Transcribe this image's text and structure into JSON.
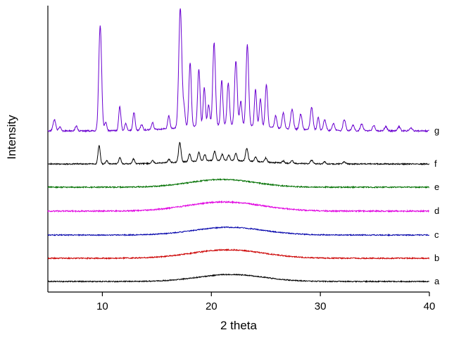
{
  "figure": {
    "background": "#ffffff",
    "axis_color": "#000000"
  },
  "chart_data": {
    "type": "line",
    "title": "",
    "xlabel": "2 theta",
    "ylabel": "Intensity",
    "xlim": [
      5,
      40
    ],
    "x_ticks": [
      10,
      20,
      30,
      40
    ],
    "grid": false,
    "legend_position": "right-of-each-trace",
    "description": "Stacked XRD diffractograms: traces a-e are amorphous broad halos centered near 2theta=21-22; trace f shows weak crystalline peaks; trace g shows strong crystalline peaks.",
    "series": [
      {
        "name": "a",
        "color": "#000000",
        "offset": 15,
        "noise": 0.7,
        "hump": {
          "c": 21.8,
          "h": 10,
          "s": 3.0
        },
        "peaks": []
      },
      {
        "name": "b",
        "color": "#cc0000",
        "offset": 48,
        "noise": 0.8,
        "hump": {
          "c": 21.5,
          "h": 12,
          "s": 3.3
        },
        "peaks": []
      },
      {
        "name": "c",
        "color": "#0000aa",
        "offset": 81,
        "noise": 0.7,
        "hump": {
          "c": 21.6,
          "h": 11,
          "s": 3.2
        },
        "peaks": []
      },
      {
        "name": "d",
        "color": "#e000e0",
        "offset": 115,
        "noise": 0.9,
        "hump": {
          "c": 21.2,
          "h": 13,
          "s": 3.4
        },
        "peaks": []
      },
      {
        "name": "e",
        "color": "#007000",
        "offset": 149,
        "noise": 0.8,
        "hump": {
          "c": 21.0,
          "h": 11,
          "s": 3.0
        },
        "peaks": []
      },
      {
        "name": "f",
        "color": "#000000",
        "offset": 182,
        "noise": 0.8,
        "hump": {
          "c": 21.0,
          "h": 5,
          "s": 3.5
        },
        "peaks": [
          [
            9.7,
            26,
            0.1
          ],
          [
            10.4,
            5,
            0.1
          ],
          [
            11.6,
            9,
            0.1
          ],
          [
            12.85,
            7,
            0.1
          ],
          [
            14.6,
            4,
            0.1
          ],
          [
            16.1,
            5,
            0.1
          ],
          [
            17.1,
            28,
            0.11
          ],
          [
            18.0,
            11,
            0.1
          ],
          [
            18.85,
            13,
            0.1
          ],
          [
            19.4,
            9,
            0.1
          ],
          [
            20.3,
            13,
            0.1
          ],
          [
            21.0,
            9,
            0.1
          ],
          [
            21.6,
            8,
            0.1
          ],
          [
            22.25,
            11,
            0.1
          ],
          [
            23.25,
            18,
            0.11
          ],
          [
            24.05,
            7,
            0.1
          ],
          [
            25.0,
            6,
            0.1
          ],
          [
            26.6,
            3,
            0.1
          ],
          [
            27.4,
            4,
            0.1
          ],
          [
            29.2,
            5,
            0.12
          ],
          [
            30.4,
            3,
            0.1
          ],
          [
            32.2,
            3,
            0.12
          ]
        ]
      },
      {
        "name": "g",
        "color": "#6a00d0",
        "offset": 229,
        "noise": 1.0,
        "hump": {
          "c": 21.5,
          "h": 8,
          "s": 4.0
        },
        "peaks": [
          [
            5.6,
            16,
            0.12
          ],
          [
            6.1,
            6,
            0.1
          ],
          [
            7.6,
            7,
            0.1
          ],
          [
            9.8,
            150,
            0.13
          ],
          [
            10.3,
            12,
            0.1
          ],
          [
            11.6,
            34,
            0.1
          ],
          [
            12.15,
            10,
            0.1
          ],
          [
            12.9,
            26,
            0.1
          ],
          [
            13.6,
            8,
            0.1
          ],
          [
            14.6,
            10,
            0.1
          ],
          [
            16.1,
            18,
            0.1
          ],
          [
            17.15,
            170,
            0.14
          ],
          [
            17.5,
            25,
            0.1
          ],
          [
            18.05,
            92,
            0.11
          ],
          [
            18.85,
            82,
            0.11
          ],
          [
            19.35,
            55,
            0.1
          ],
          [
            19.75,
            30,
            0.1
          ],
          [
            20.25,
            118,
            0.12
          ],
          [
            20.95,
            65,
            0.1
          ],
          [
            21.55,
            60,
            0.11
          ],
          [
            22.25,
            92,
            0.12
          ],
          [
            22.7,
            35,
            0.1
          ],
          [
            23.3,
            115,
            0.12
          ],
          [
            24.05,
            52,
            0.1
          ],
          [
            24.5,
            40,
            0.1
          ],
          [
            25.05,
            60,
            0.11
          ],
          [
            25.9,
            18,
            0.1
          ],
          [
            26.6,
            22,
            0.11
          ],
          [
            27.4,
            28,
            0.12
          ],
          [
            28.2,
            22,
            0.12
          ],
          [
            29.2,
            32,
            0.12
          ],
          [
            29.8,
            18,
            0.1
          ],
          [
            30.4,
            15,
            0.12
          ],
          [
            31.2,
            10,
            0.12
          ],
          [
            32.2,
            16,
            0.12
          ],
          [
            33.0,
            8,
            0.12
          ],
          [
            33.8,
            10,
            0.12
          ],
          [
            34.9,
            8,
            0.12
          ],
          [
            36.0,
            6,
            0.12
          ],
          [
            37.2,
            6,
            0.12
          ],
          [
            38.3,
            4,
            0.12
          ]
        ]
      }
    ]
  }
}
